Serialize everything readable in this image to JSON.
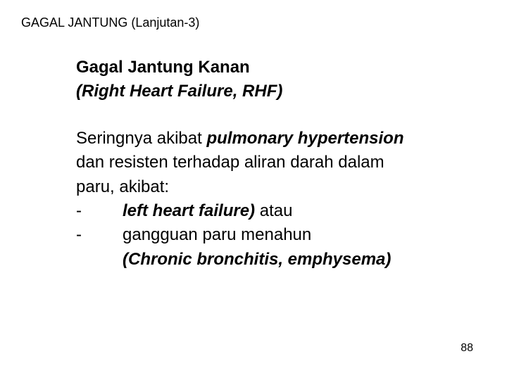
{
  "header": {
    "title": "GAGAL JANTUNG (Lanjutan-3)"
  },
  "heading": {
    "line1": "Gagal Jantung Kanan",
    "line2": "(Right Heart Failure, RHF)"
  },
  "body": {
    "l1a": "Seringnya akibat ",
    "l1b": "pulmonary hypertension",
    "l2": "dan resisten terhadap aliran darah dalam",
    "l3": "paru, akibat:"
  },
  "list": {
    "dash": "-",
    "item1a": "left heart failure)",
    "item1b": " atau",
    "item2a": "gangguan paru menahun",
    "item2b": "(Chronic bronchitis, emphysema)"
  },
  "page": {
    "number": "88"
  }
}
